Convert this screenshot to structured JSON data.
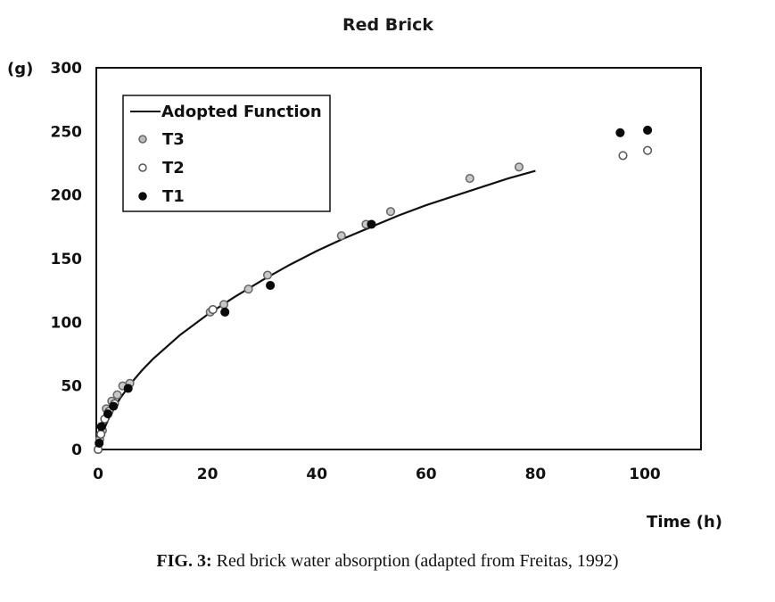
{
  "chart_data": {
    "type": "scatter",
    "title": "Red Brick",
    "ylabel": "(g)",
    "xlabel": "Time (h)",
    "xlim": [
      0,
      110
    ],
    "ylim": [
      0,
      300
    ],
    "x_ticks": [
      0,
      20,
      40,
      60,
      80,
      100
    ],
    "y_ticks": [
      0,
      50,
      100,
      150,
      200,
      250,
      300
    ],
    "grid": false,
    "legend_position": "top-left",
    "series": [
      {
        "name": "Adopted Function",
        "kind": "line",
        "color": "#111111",
        "x": [
          0,
          0.5,
          1,
          2,
          3,
          4,
          5,
          6,
          8,
          10,
          15,
          20,
          25,
          30,
          35,
          40,
          45,
          50,
          55,
          60,
          65,
          70,
          75,
          80
        ],
        "y": [
          0,
          8,
          15,
          25,
          33,
          40,
          46,
          52,
          62,
          71,
          90,
          106,
          120,
          133,
          145,
          156,
          166,
          175,
          184,
          192,
          199,
          206,
          213,
          219
        ]
      },
      {
        "name": "T3",
        "kind": "marker",
        "marker": "circle-gray",
        "color": "#8a8a8a",
        "x": [
          0.3,
          0.8,
          1.5,
          2.5,
          3.5,
          4.5,
          5.8,
          20.5,
          23,
          27.5,
          31,
          44.5,
          49,
          53.5,
          68,
          77
        ],
        "y": [
          8,
          15,
          32,
          38,
          43,
          50,
          52,
          108,
          114,
          126,
          137,
          168,
          177,
          187,
          213,
          222
        ]
      },
      {
        "name": "T2",
        "kind": "marker",
        "marker": "circle-open",
        "color": "#555555",
        "x": [
          0,
          0.5,
          1.2,
          2,
          3,
          21,
          96,
          100.5
        ],
        "y": [
          0,
          12,
          24,
          30,
          36,
          110,
          231,
          235
        ]
      },
      {
        "name": "T1",
        "kind": "marker",
        "marker": "circle-filled",
        "color": "#0a0a0a",
        "x": [
          0.2,
          0.6,
          1.8,
          2.8,
          5.5,
          23.2,
          31.5,
          50,
          95.5,
          100.5
        ],
        "y": [
          5,
          18,
          28,
          34,
          48,
          108,
          129,
          177,
          249,
          251
        ]
      }
    ]
  },
  "caption": {
    "prefix": "FIG. 3:",
    "text": " Red brick water absorption (adapted from Freitas, 1992)"
  }
}
